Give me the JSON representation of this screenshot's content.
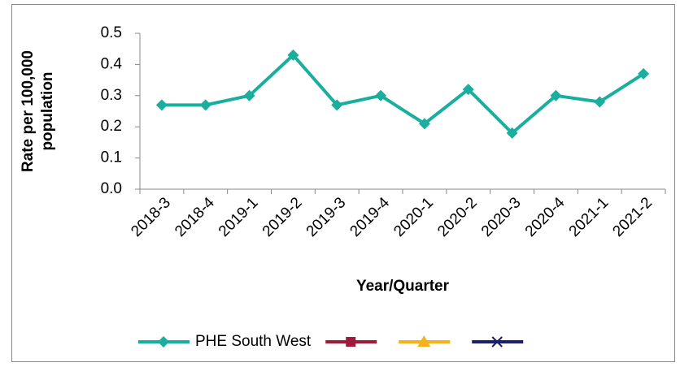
{
  "chart_data": {
    "type": "line",
    "x_label": "Year/Quarter",
    "y_label": "Rate per 100,000 population",
    "categories": [
      "2018-3",
      "2018-4",
      "2019-1",
      "2019-2",
      "2019-3",
      "2019-4",
      "2020-1",
      "2020-2",
      "2020-3",
      "2020-4",
      "2021-1",
      "2021-2"
    ],
    "series": [
      {
        "name": "PHE South West",
        "color": "#1aae9f",
        "marker": "diamond",
        "values": [
          0.27,
          0.27,
          0.3,
          0.43,
          0.27,
          0.3,
          0.21,
          0.32,
          0.18,
          0.3,
          0.28,
          0.37
        ]
      },
      {
        "color": "#9e1b3c",
        "marker": "square",
        "values": [
          null,
          null,
          null,
          null,
          null,
          null,
          null,
          null,
          null,
          null,
          null,
          null
        ]
      },
      {
        "color": "#f5b21c",
        "marker": "triangle",
        "values": [
          null,
          null,
          null,
          null,
          null,
          null,
          null,
          null,
          null,
          null,
          null,
          null
        ]
      },
      {
        "color": "#1b1f6a",
        "marker": "x",
        "values": [
          null,
          null,
          null,
          null,
          null,
          null,
          null,
          null,
          null,
          null,
          null,
          null
        ]
      }
    ],
    "ylim": [
      0,
      0.5
    ],
    "yticks": [
      {
        "value": 0,
        "label": "0.0"
      },
      0.1,
      0.2,
      0.3,
      0.4,
      0.5
    ],
    "legend": "bottom"
  }
}
